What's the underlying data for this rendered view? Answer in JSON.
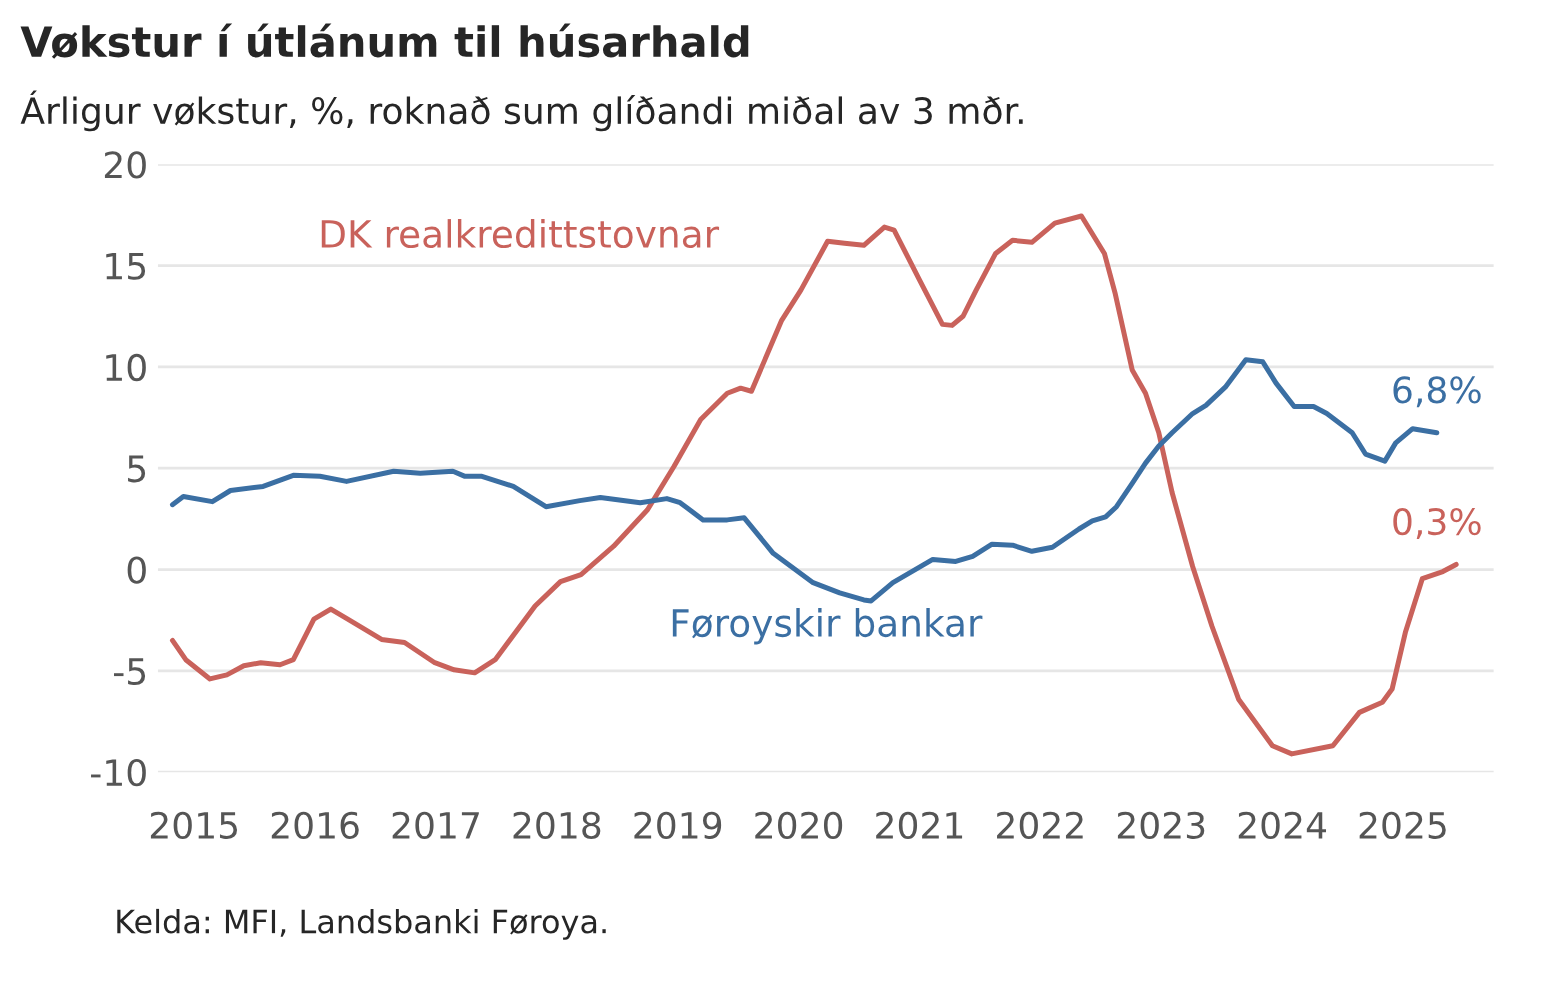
{
  "chart_data": {
    "type": "line",
    "title": "Vøkstur í útlánum til húsarhald",
    "subtitle": "Árligur vøkstur, %, roknað sum glíðandi miðal av 3 mðr.",
    "series": [
      {
        "name": "DK realkredittstovnar",
        "color": "#c9625b",
        "x": [
          2014.82,
          2014.93,
          2015.13,
          2015.27,
          2015.41,
          2015.55,
          2015.71,
          2015.82,
          2015.99,
          2016.13,
          2016.27,
          2016.55,
          2016.74,
          2016.99,
          2017.15,
          2017.32,
          2017.49,
          2017.82,
          2018.03,
          2018.2,
          2018.47,
          2018.75,
          2018.97,
          2019.19,
          2019.41,
          2019.52,
          2019.61,
          2019.86,
          2020.02,
          2020.24,
          2020.38,
          2020.54,
          2020.71,
          2020.79,
          2021.0,
          2021.19,
          2021.27,
          2021.36,
          2021.47,
          2021.63,
          2021.77,
          2021.93,
          2022.12,
          2022.34,
          2022.53,
          2022.62,
          2022.76,
          2022.87,
          2022.98,
          2023.09,
          2023.26,
          2023.42,
          2023.64,
          2023.92,
          2024.08,
          2024.42,
          2024.64,
          2024.83,
          2024.91,
          2025.02,
          2025.16,
          2025.33,
          2025.44
        ],
        "values": [
          -3.5,
          -4.45,
          -5.4,
          -5.2,
          -4.75,
          -4.6,
          -4.7,
          -4.45,
          -2.45,
          -1.95,
          -2.45,
          -3.45,
          -3.6,
          -4.6,
          -4.95,
          -5.1,
          -4.45,
          -1.8,
          -0.6,
          -0.25,
          1.15,
          2.95,
          5.1,
          7.4,
          8.7,
          8.95,
          8.8,
          12.3,
          13.8,
          16.2,
          16.1,
          16.0,
          16.9,
          16.75,
          14.3,
          12.1,
          12.05,
          12.5,
          13.8,
          15.6,
          16.25,
          16.15,
          17.1,
          17.45,
          15.6,
          13.6,
          9.85,
          8.7,
          6.75,
          3.8,
          0.15,
          -2.8,
          -6.4,
          -8.7,
          -9.1,
          -8.7,
          -7.05,
          -6.55,
          -5.9,
          -3.1,
          -0.45,
          -0.1,
          0.25
        ]
      },
      {
        "name": "Føroyskir bankar",
        "color": "#3b6fa3",
        "x": [
          2014.82,
          2014.91,
          2015.15,
          2015.3,
          2015.57,
          2015.82,
          2016.04,
          2016.26,
          2016.65,
          2016.87,
          2017.14,
          2017.24,
          2017.38,
          2017.64,
          2017.91,
          2018.19,
          2018.36,
          2018.69,
          2018.91,
          2019.02,
          2019.21,
          2019.41,
          2019.55,
          2019.79,
          2020.12,
          2020.34,
          2020.54,
          2020.6,
          2020.78,
          2021.11,
          2021.3,
          2021.44,
          2021.6,
          2021.77,
          2021.93,
          2022.1,
          2022.32,
          2022.43,
          2022.54,
          2022.63,
          2022.76,
          2022.87,
          2022.98,
          2023.09,
          2023.26,
          2023.37,
          2023.53,
          2023.7,
          2023.84,
          2023.95,
          2024.1,
          2024.26,
          2024.37,
          2024.58,
          2024.69,
          2024.85,
          2024.94,
          2025.08,
          2025.28
        ],
        "values": [
          3.2,
          3.6,
          3.35,
          3.9,
          4.1,
          4.65,
          4.6,
          4.35,
          4.85,
          4.75,
          4.85,
          4.6,
          4.6,
          4.1,
          3.1,
          3.4,
          3.55,
          3.3,
          3.5,
          3.3,
          2.45,
          2.45,
          2.55,
          0.8,
          -0.65,
          -1.15,
          -1.5,
          -1.55,
          -0.65,
          0.5,
          0.4,
          0.65,
          1.25,
          1.2,
          0.9,
          1.1,
          2.0,
          2.4,
          2.6,
          3.1,
          4.25,
          5.25,
          6.1,
          6.75,
          7.7,
          8.1,
          9.0,
          10.35,
          10.25,
          9.2,
          8.05,
          8.05,
          7.7,
          6.75,
          5.7,
          5.35,
          6.25,
          6.95,
          6.75
        ]
      }
    ],
    "annotations": [
      {
        "text": "6,8%",
        "x": 2025.28,
        "y": 6.75
      },
      {
        "text": "0,3%",
        "x": 2025.28,
        "y": 0.25
      },
      "Kelda: MFI, Landsbanki Føroya."
    ],
    "xlim": [
      2014.7,
      2025.75
    ],
    "xticks": [
      2015,
      2016,
      2017,
      2018,
      2019,
      2020,
      2021,
      2022,
      2023,
      2024,
      2025
    ],
    "ylim": [
      -10,
      20
    ],
    "yticks": [
      -10,
      -5,
      0,
      5,
      10,
      15,
      20
    ],
    "grid": "y",
    "legend": false
  }
}
